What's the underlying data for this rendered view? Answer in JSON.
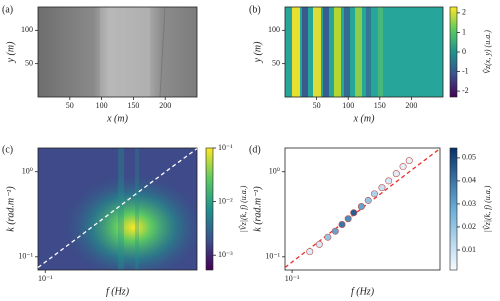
{
  "chart_data": [
    {
      "type": "image",
      "label": "(a)",
      "xlabel": "x (m)",
      "ylabel": "y (m)",
      "xlim": [
        0,
        250
      ],
      "xticks": [
        50,
        100,
        150,
        200
      ],
      "ylim": [
        0,
        135
      ],
      "yticks": [
        50,
        100
      ]
    },
    {
      "type": "image",
      "label": "(b)",
      "xlabel": "x (m)",
      "ylabel": "y (m)",
      "xlim": [
        0,
        250
      ],
      "xticks": [
        50,
        100,
        150,
        200
      ],
      "ylim": [
        0,
        135
      ],
      "yticks": [
        50,
        100
      ],
      "colorbar": {
        "label": "V̂z(x, y) (u.a.)",
        "lim": [
          -2.3,
          2.3
        ],
        "ticks": [
          2,
          1,
          0,
          -1,
          -2
        ],
        "log": false,
        "colormap": "viridis"
      }
    },
    {
      "type": "heatmap",
      "label": "(c)",
      "xlabel": "f (Hz)",
      "ylabel": "k (rad.m⁻¹)",
      "xscale": "log",
      "yscale": "log",
      "xlim": [
        0.09,
        0.9
      ],
      "xticks": [
        {
          "value": 0.1,
          "label": "10⁻¹"
        }
      ],
      "ylim": [
        0.07,
        1.9
      ],
      "yticks": [
        {
          "value": 1,
          "label": "10⁰"
        },
        {
          "value": 0.1,
          "label": "10⁻¹"
        }
      ],
      "colorbar": {
        "label": "|V̂z|(k, f) (u.a.)",
        "lim": [
          0.00053,
          0.1
        ],
        "log": true,
        "colormap": "viridis",
        "ticks": [
          {
            "value": 0.1,
            "label": "10⁻¹"
          },
          {
            "value": 0.01,
            "label": "10⁻²"
          },
          {
            "value": 0.001,
            "label": "10⁻³"
          }
        ]
      },
      "series": [
        {
          "type": "line",
          "color": "#ffffff",
          "dashed": true,
          "x": [
            0.09,
            0.15,
            0.25,
            0.4,
            0.6,
            0.9
          ],
          "y": [
            0.075,
            0.153,
            0.313,
            0.608,
            1.07,
            1.87
          ]
        }
      ]
    },
    {
      "type": "scatter",
      "label": "(d)",
      "xlabel": "f (Hz)",
      "ylabel": "k (rad.m⁻¹)",
      "xscale": "log",
      "yscale": "log",
      "xlim": [
        0.09,
        0.9
      ],
      "xticks": [
        {
          "value": 0.1,
          "label": "10⁻¹"
        }
      ],
      "ylim": [
        0.07,
        1.9
      ],
      "yticks": [
        {
          "value": 1,
          "label": "10⁰"
        },
        {
          "value": 0.1,
          "label": "10⁻¹"
        }
      ],
      "colorbar": {
        "label": "|V̂z|(k, f) (u.a.)",
        "lim": [
          0.0013,
          0.0543
        ],
        "log": false,
        "colormap": "Blues",
        "ticks": [
          0.05,
          0.04,
          0.03,
          0.02,
          0.01
        ]
      },
      "series": [
        {
          "type": "line",
          "color": "#e8312a",
          "dashed": true,
          "x": [
            0.09,
            0.15,
            0.25,
            0.4,
            0.6,
            0.9
          ],
          "y": [
            0.075,
            0.153,
            0.313,
            0.608,
            1.07,
            1.87
          ]
        },
        {
          "type": "scatter",
          "edgecolor": "#c0504d",
          "x": [
            0.13,
            0.15,
            0.17,
            0.19,
            0.21,
            0.23,
            0.25,
            0.28,
            0.31,
            0.34,
            0.38,
            0.42,
            0.47,
            0.52,
            0.57
          ],
          "y": [
            0.115,
            0.14,
            0.17,
            0.2,
            0.24,
            0.28,
            0.33,
            0.39,
            0.46,
            0.55,
            0.65,
            0.78,
            0.95,
            1.15,
            1.35
          ],
          "values": [
            0.006,
            0.008,
            0.02,
            0.03,
            0.04,
            0.035,
            0.045,
            0.03,
            0.02,
            0.015,
            0.01,
            0.008,
            0.006,
            0.005,
            0.004
          ]
        }
      ]
    }
  ]
}
